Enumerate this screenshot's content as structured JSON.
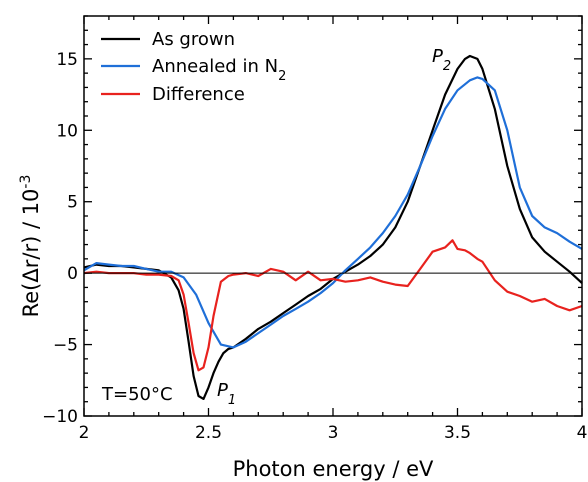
{
  "chart_data": {
    "type": "line",
    "xlabel": "Photon energy / eV",
    "ylabel_main": "Re(Δr/r) / 10",
    "ylabel_exp": "-3",
    "xlim": [
      2,
      4
    ],
    "ylim": [
      -10,
      18
    ],
    "xticks": [
      2,
      2.5,
      3,
      3.5,
      4
    ],
    "xtick_labels": [
      "2",
      "2.5",
      "3",
      "3.5",
      "4"
    ],
    "yticks": [
      -10,
      -5,
      0,
      5,
      10,
      15
    ],
    "ytick_labels": [
      "−10",
      "−5",
      "0",
      "5",
      "10",
      "15"
    ],
    "zero_line": true,
    "grid": false,
    "legend_position": "top-left",
    "legend": {
      "as_grown": "As grown",
      "annealed_main": "Annealed in N",
      "annealed_sub": "2",
      "difference": "Difference"
    },
    "annotations": {
      "temperature": "T=50°C",
      "p1_letter": "P",
      "p1_sub": "1",
      "p2_letter": "P",
      "p2_sub": "2"
    },
    "series": [
      {
        "key": "as_grown",
        "color": "#000000",
        "x": [
          2.0,
          2.05,
          2.1,
          2.15,
          2.2,
          2.25,
          2.3,
          2.35,
          2.38,
          2.4,
          2.42,
          2.44,
          2.46,
          2.48,
          2.5,
          2.52,
          2.54,
          2.56,
          2.58,
          2.6,
          2.65,
          2.7,
          2.75,
          2.8,
          2.85,
          2.9,
          2.95,
          3.0,
          3.05,
          3.1,
          3.15,
          3.2,
          3.25,
          3.3,
          3.35,
          3.4,
          3.45,
          3.5,
          3.53,
          3.55,
          3.58,
          3.6,
          3.65,
          3.7,
          3.75,
          3.8,
          3.85,
          3.9,
          3.95,
          4.0
        ],
        "y": [
          0.4,
          0.6,
          0.5,
          0.5,
          0.4,
          0.3,
          0.2,
          -0.3,
          -1.2,
          -2.5,
          -4.8,
          -7.2,
          -8.6,
          -8.8,
          -8.0,
          -7.0,
          -6.2,
          -5.6,
          -5.3,
          -5.2,
          -4.6,
          -3.9,
          -3.4,
          -2.8,
          -2.2,
          -1.6,
          -1.1,
          -0.4,
          0.1,
          0.6,
          1.2,
          2.0,
          3.2,
          5.0,
          7.5,
          10.0,
          12.5,
          14.3,
          15.0,
          15.2,
          15.0,
          14.3,
          11.5,
          7.5,
          4.5,
          2.5,
          1.5,
          0.8,
          0.1,
          -0.7
        ]
      },
      {
        "key": "annealed",
        "color": "#1f6fd8",
        "x": [
          2.0,
          2.05,
          2.1,
          2.15,
          2.2,
          2.25,
          2.3,
          2.35,
          2.4,
          2.45,
          2.5,
          2.55,
          2.6,
          2.65,
          2.7,
          2.75,
          2.8,
          2.85,
          2.9,
          2.95,
          3.0,
          3.05,
          3.1,
          3.15,
          3.2,
          3.25,
          3.3,
          3.35,
          3.4,
          3.45,
          3.5,
          3.55,
          3.58,
          3.6,
          3.65,
          3.7,
          3.75,
          3.8,
          3.85,
          3.9,
          3.95,
          4.0
        ],
        "y": [
          0.2,
          0.7,
          0.6,
          0.5,
          0.5,
          0.3,
          0.1,
          0.1,
          -0.3,
          -1.5,
          -3.5,
          -5.0,
          -5.2,
          -4.8,
          -4.2,
          -3.6,
          -3.0,
          -2.5,
          -2.0,
          -1.4,
          -0.7,
          0.2,
          1.0,
          1.8,
          2.8,
          4.0,
          5.5,
          7.5,
          9.6,
          11.5,
          12.8,
          13.5,
          13.7,
          13.6,
          12.8,
          10.0,
          6.0,
          4.0,
          3.2,
          2.8,
          2.2,
          1.7
        ]
      },
      {
        "key": "difference",
        "color": "#e8221e",
        "x": [
          2.0,
          2.05,
          2.1,
          2.15,
          2.2,
          2.25,
          2.3,
          2.35,
          2.38,
          2.4,
          2.42,
          2.44,
          2.46,
          2.48,
          2.5,
          2.52,
          2.55,
          2.58,
          2.6,
          2.65,
          2.7,
          2.75,
          2.8,
          2.85,
          2.9,
          2.95,
          3.0,
          3.05,
          3.1,
          3.15,
          3.2,
          3.25,
          3.3,
          3.35,
          3.4,
          3.45,
          3.48,
          3.5,
          3.53,
          3.55,
          3.58,
          3.6,
          3.65,
          3.7,
          3.75,
          3.8,
          3.85,
          3.9,
          3.95,
          4.0
        ],
        "y": [
          0.0,
          0.1,
          0.0,
          0.0,
          0.0,
          -0.1,
          -0.1,
          -0.2,
          -0.5,
          -1.5,
          -3.5,
          -5.6,
          -6.8,
          -6.6,
          -5.2,
          -3.0,
          -0.6,
          -0.2,
          -0.1,
          0.0,
          -0.2,
          0.3,
          0.1,
          -0.5,
          0.1,
          -0.5,
          -0.4,
          -0.6,
          -0.5,
          -0.3,
          -0.6,
          -0.8,
          -0.9,
          0.3,
          1.5,
          1.8,
          2.3,
          1.7,
          1.6,
          1.4,
          1.0,
          0.8,
          -0.5,
          -1.3,
          -1.6,
          -2.0,
          -1.8,
          -2.3,
          -2.6,
          -2.3
        ]
      }
    ]
  }
}
